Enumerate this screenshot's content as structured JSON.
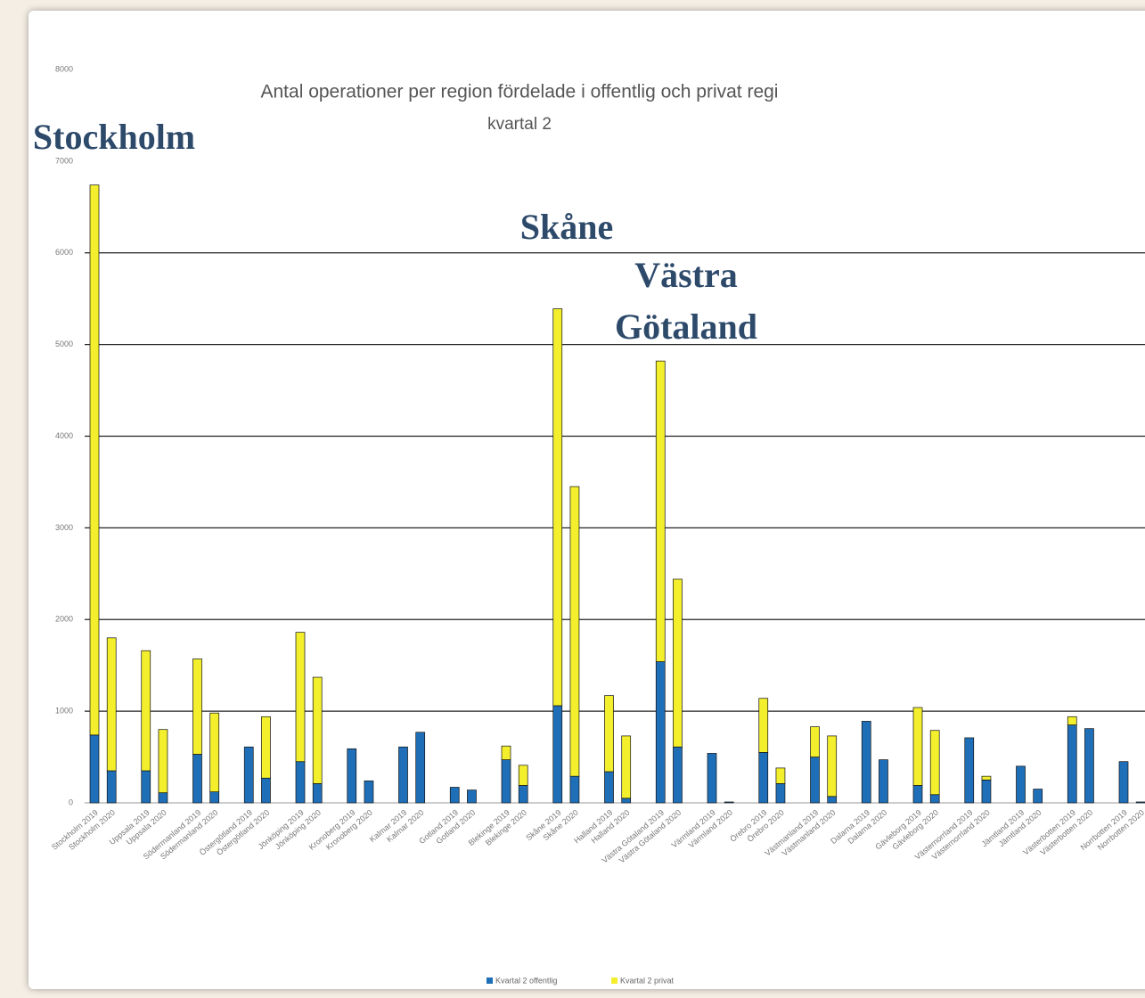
{
  "chart_data": {
    "type": "stacked_bar",
    "title": "Antal operationer per region fördelade i offentlig och privat regi",
    "subtitle": "kvartal 2",
    "categories": [
      "Stockholm 2019",
      "Stockholm 2020",
      "Uppsala 2019",
      "Uppsala 2020",
      "Södermanland 2019",
      "Södermanland 2020",
      "Östergötland 2019",
      "Östergötland 2020",
      "Jönköping 2019",
      "Jönköping 2020",
      "Kronoberg 2019",
      "Kronoberg 2020",
      "Kalmar 2019",
      "Kalmar 2020",
      "Gotland 2019",
      "Gotland 2020",
      "Blekinge 2019",
      "Blekinge 2020",
      "Skåne 2019",
      "Skåne 2020",
      "Halland 2019",
      "Halland 2020",
      "Västra Götaland 2019",
      "Västra Götaland 2020",
      "Värmland 2019",
      "Värmland 2020",
      "Örebro 2019",
      "Örebro 2020",
      "Västmanland 2019",
      "Västmanland 2020",
      "Dalarna 2019",
      "Dalarna 2020",
      "Gävleborg 2019",
      "Gävleborg 2020",
      "Västernorrland 2019",
      "Västernorrland 2020",
      "Jämtland 2019",
      "Jämtland 2020",
      "Västerbotten 2019",
      "Västerbotten 2020",
      "Norrbotten 2019",
      "Norrbotten 2020"
    ],
    "series": [
      {
        "name": "Kvartal 2 offentlig",
        "color": "#1f6fb8",
        "values": [
          740,
          350,
          350,
          110,
          530,
          120,
          610,
          270,
          450,
          210,
          590,
          240,
          610,
          770,
          170,
          140,
          470,
          190,
          1060,
          290,
          340,
          50,
          1540,
          610,
          540,
          10,
          550,
          210,
          500,
          70,
          890,
          470,
          190,
          90,
          710,
          250,
          400,
          150,
          850,
          810,
          450,
          10
        ]
      },
      {
        "name": "Kvartal 2 privat",
        "color": "#f3ef2c",
        "values": [
          6000,
          1450,
          1310,
          690,
          1040,
          860,
          0,
          670,
          1410,
          1160,
          0,
          0,
          0,
          0,
          0,
          0,
          150,
          220,
          4330,
          3160,
          830,
          680,
          3280,
          1830,
          0,
          0,
          590,
          170,
          330,
          660,
          0,
          0,
          850,
          700,
          0,
          40,
          0,
          0,
          90,
          0,
          0,
          0
        ]
      }
    ],
    "ylim": [
      0,
      8000
    ],
    "yticks": [
      0,
      1000,
      2000,
      3000,
      4000,
      5000,
      6000,
      7000,
      8000
    ],
    "grid": true,
    "legend": "bottom",
    "annotations": [
      {
        "lines": [
          "Stockholm"
        ]
      },
      {
        "lines": [
          "Skåne"
        ]
      },
      {
        "lines": [
          "Västra",
          "Götaland"
        ]
      }
    ]
  }
}
